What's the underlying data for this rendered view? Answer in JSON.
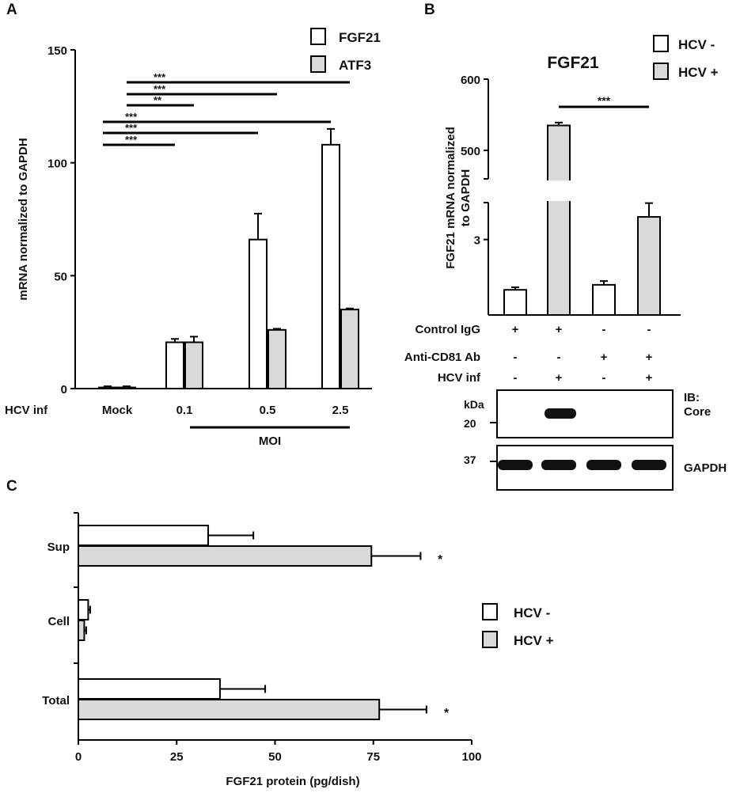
{
  "colors": {
    "hcv_minus_fill": "#ffffff",
    "hcv_plus_fill": "#d9d9d9",
    "edge": "#000000"
  },
  "chart_data": [
    {
      "panel": "A",
      "type": "bar",
      "ylabel": "mRNA normalized to GAPDH",
      "ylim": [
        0,
        150
      ],
      "yticks": [
        "0",
        "50",
        "100",
        "150"
      ],
      "row_label": "HCV inf",
      "categories": [
        "Mock",
        "0.1",
        "0.5",
        "2.5"
      ],
      "group_label": "MOI",
      "legend": [
        "FGF21",
        "ATF3"
      ],
      "series": [
        {
          "name": "FGF21",
          "values": [
            0.5,
            20.5,
            66,
            108
          ],
          "errors": [
            0.5,
            1.5,
            11.5,
            7
          ]
        },
        {
          "name": "ATF3",
          "values": [
            0.5,
            20.5,
            26,
            35
          ],
          "errors": [
            0.5,
            2.5,
            0.5,
            0.5
          ]
        }
      ],
      "significance": [
        {
          "from": "Mock",
          "to": "2.5",
          "series": "ATF3",
          "label": "***"
        },
        {
          "from": "Mock",
          "to": "0.5",
          "series": "ATF3",
          "label": "***"
        },
        {
          "from": "Mock",
          "to": "0.1",
          "series": "ATF3",
          "label": "**"
        },
        {
          "from": "Mock",
          "to": "2.5",
          "series": "FGF21",
          "label": "***"
        },
        {
          "from": "Mock",
          "to": "0.5",
          "series": "FGF21",
          "label": "***"
        },
        {
          "from": "Mock",
          "to": "0.1",
          "series": "FGF21",
          "label": "***"
        }
      ]
    },
    {
      "panel": "B",
      "type": "bar",
      "title": "FGF21",
      "ylabel_lines": [
        "FGF21 mRNA normalized",
        "to GAPDH"
      ],
      "yticks": [
        "3",
        "500",
        "600"
      ],
      "axis_break": true,
      "lower_range": [
        0,
        4.5
      ],
      "upper_range": [
        460,
        600
      ],
      "categories": [
        "1",
        "2",
        "3",
        "4"
      ],
      "legend": [
        "HCV -",
        "HCV +"
      ],
      "series_per_bar": [
        "HCV -",
        "HCV +",
        "HCV -",
        "HCV +"
      ],
      "values": [
        1,
        535,
        1.2,
        3.9
      ],
      "errors": [
        0.1,
        4,
        0.15,
        0.55
      ],
      "significance": [
        {
          "from": 2,
          "to": 4,
          "label": "***"
        }
      ],
      "conditions": [
        {
          "label": "Control IgG",
          "values": [
            "+",
            "+",
            "-",
            "-"
          ]
        },
        {
          "label": "Anti-CD81 Ab",
          "values": [
            "-",
            "-",
            "+",
            "+"
          ]
        },
        {
          "label": "HCV inf",
          "values": [
            "-",
            "+",
            "-",
            "+"
          ]
        }
      ],
      "blots": {
        "kda_label": "kDa",
        "core": {
          "marker": "20",
          "label_lines": [
            "IB:",
            "Core"
          ],
          "bands": [
            false,
            true,
            false,
            false
          ]
        },
        "gapdh": {
          "marker": "37",
          "label": "GAPDH",
          "bands": [
            true,
            true,
            true,
            true
          ]
        }
      }
    },
    {
      "panel": "C",
      "type": "bar",
      "orientation": "horizontal",
      "xlabel": "FGF21 protein (pg/dish)",
      "xlim": [
        0,
        100
      ],
      "xticks": [
        "0",
        "25",
        "50",
        "75",
        "100"
      ],
      "categories": [
        "Sup",
        "Cell",
        "Total"
      ],
      "legend": [
        "HCV -",
        "HCV +"
      ],
      "series": [
        {
          "name": "HCV -",
          "values": [
            33,
            2.5,
            36
          ],
          "errors": [
            11.5,
            0.5,
            11.5
          ]
        },
        {
          "name": "HCV +",
          "values": [
            74.5,
            1.5,
            76.5
          ],
          "errors": [
            12.5,
            0.5,
            12
          ]
        }
      ],
      "significance_marks": [
        "*",
        "",
        "*"
      ]
    }
  ]
}
